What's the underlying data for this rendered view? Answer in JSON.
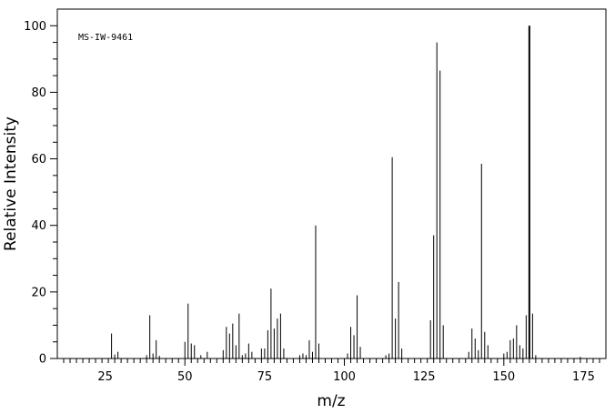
{
  "chart_data": {
    "type": "bar",
    "title": "",
    "annotation": "MS-IW-9461",
    "xlabel": "m/z",
    "ylabel": "Relative Intensity",
    "xlim": [
      10,
      182
    ],
    "ylim": [
      0,
      105
    ],
    "x_major_ticks": [
      25,
      50,
      75,
      100,
      125,
      150,
      175
    ],
    "y_major_ticks": [
      0,
      20,
      40,
      60,
      80,
      100
    ],
    "grid": false,
    "legend": "none",
    "bar_color": "#000000",
    "peaks": [
      [
        27,
        7.5
      ],
      [
        28,
        1.2
      ],
      [
        29,
        2.0
      ],
      [
        38,
        1.0
      ],
      [
        39,
        13.0
      ],
      [
        40,
        1.5
      ],
      [
        41,
        5.5
      ],
      [
        42,
        0.8
      ],
      [
        50,
        5.0
      ],
      [
        51,
        16.5
      ],
      [
        52,
        4.5
      ],
      [
        53,
        4.0
      ],
      [
        55,
        1.0
      ],
      [
        57,
        2.0
      ],
      [
        62,
        2.5
      ],
      [
        63,
        9.5
      ],
      [
        64,
        7.5
      ],
      [
        65,
        10.5
      ],
      [
        66,
        4.0
      ],
      [
        67,
        13.5
      ],
      [
        68,
        1.0
      ],
      [
        69,
        1.5
      ],
      [
        70,
        4.5
      ],
      [
        71,
        2.0
      ],
      [
        74,
        3.0
      ],
      [
        75,
        3.0
      ],
      [
        76,
        8.5
      ],
      [
        77,
        21.0
      ],
      [
        78,
        9.0
      ],
      [
        79,
        12.0
      ],
      [
        80,
        13.5
      ],
      [
        81,
        3.0
      ],
      [
        86,
        1.0
      ],
      [
        87,
        1.5
      ],
      [
        88,
        1.0
      ],
      [
        89,
        5.5
      ],
      [
        90,
        2.0
      ],
      [
        91,
        40.0
      ],
      [
        92,
        4.5
      ],
      [
        101,
        1.5
      ],
      [
        102,
        9.5
      ],
      [
        103,
        7.0
      ],
      [
        104,
        19.0
      ],
      [
        105,
        3.5
      ],
      [
        113,
        1.0
      ],
      [
        114,
        1.5
      ],
      [
        115,
        60.5
      ],
      [
        116,
        12.0
      ],
      [
        117,
        23.0
      ],
      [
        118,
        3.0
      ],
      [
        127,
        11.5
      ],
      [
        128,
        37.0
      ],
      [
        129,
        95.0
      ],
      [
        130,
        86.5
      ],
      [
        131,
        10.0
      ],
      [
        139,
        2.0
      ],
      [
        140,
        9.0
      ],
      [
        141,
        6.0
      ],
      [
        142,
        2.5
      ],
      [
        143,
        58.5
      ],
      [
        144,
        8.0
      ],
      [
        145,
        4.0
      ],
      [
        150,
        1.5
      ],
      [
        151,
        2.0
      ],
      [
        152,
        5.5
      ],
      [
        153,
        6.0
      ],
      [
        154,
        10.0
      ],
      [
        155,
        4.0
      ],
      [
        156,
        3.0
      ],
      [
        157,
        13.0
      ],
      [
        158,
        100.0
      ],
      [
        159,
        13.5
      ],
      [
        160,
        1.0
      ],
      [
        174,
        0.5
      ]
    ]
  }
}
